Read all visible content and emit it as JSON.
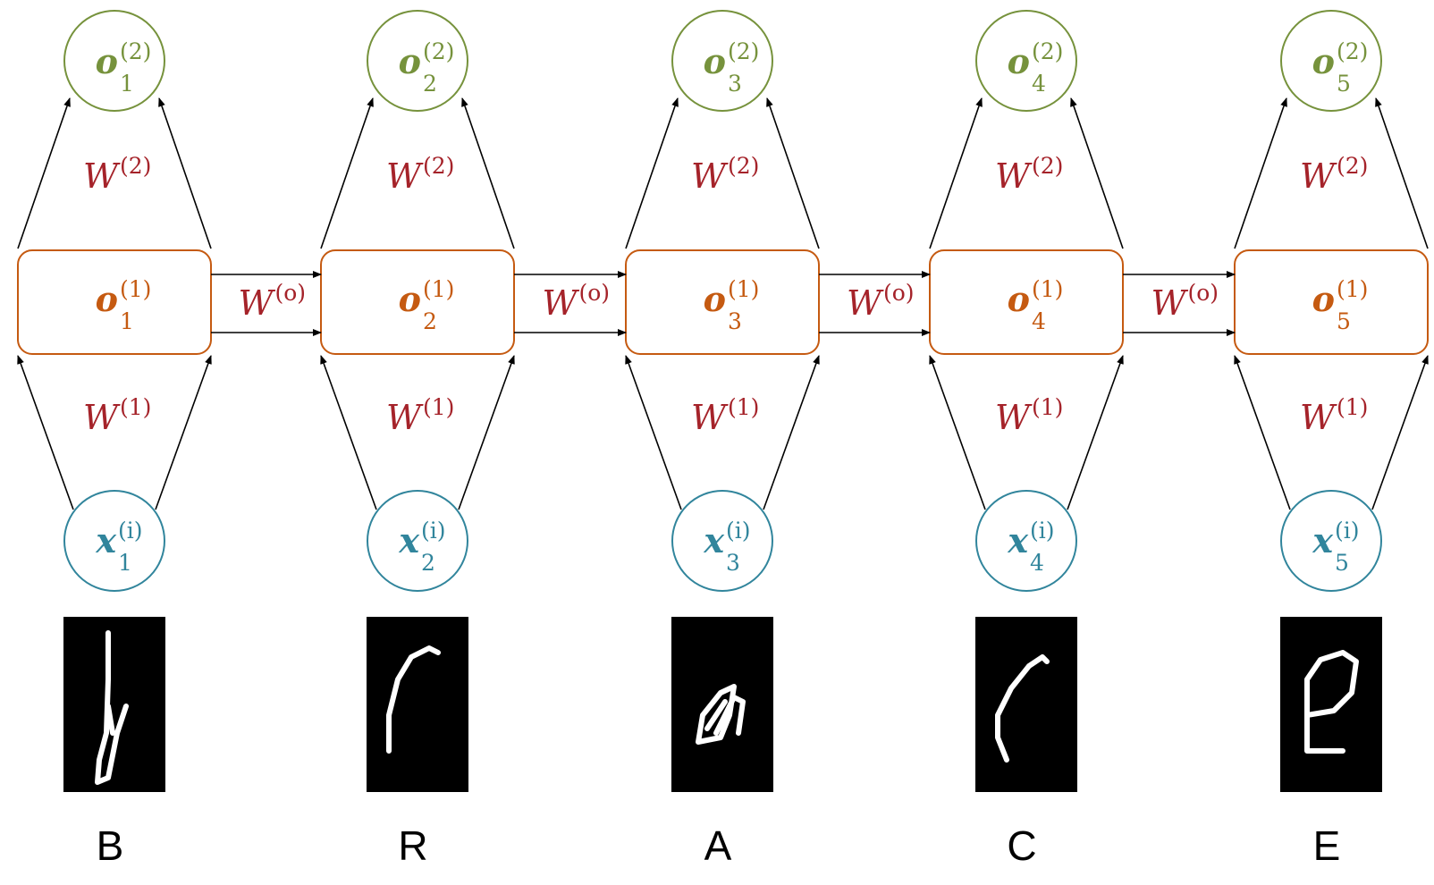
{
  "columns": [
    {
      "output": {
        "symbol": "o",
        "subscript": "1",
        "superscript": "(2)"
      },
      "up_weight": {
        "symbol": "W",
        "superscript": "(2)"
      },
      "hidden": {
        "symbol": "o",
        "subscript": "1",
        "superscript": "(1)"
      },
      "in_weight": {
        "symbol": "W",
        "superscript": "(1)"
      },
      "input": {
        "symbol": "x",
        "subscript": "1",
        "superscript": "(i)"
      },
      "letter": "B"
    },
    {
      "output": {
        "symbol": "o",
        "subscript": "2",
        "superscript": "(2)"
      },
      "up_weight": {
        "symbol": "W",
        "superscript": "(2)"
      },
      "hidden": {
        "symbol": "o",
        "subscript": "2",
        "superscript": "(1)"
      },
      "in_weight": {
        "symbol": "W",
        "superscript": "(1)"
      },
      "input": {
        "symbol": "x",
        "subscript": "2",
        "superscript": "(i)"
      },
      "letter": "R"
    },
    {
      "output": {
        "symbol": "o",
        "subscript": "3",
        "superscript": "(2)"
      },
      "up_weight": {
        "symbol": "W",
        "superscript": "(2)"
      },
      "hidden": {
        "symbol": "o",
        "subscript": "3",
        "superscript": "(1)"
      },
      "in_weight": {
        "symbol": "W",
        "superscript": "(1)"
      },
      "input": {
        "symbol": "x",
        "subscript": "3",
        "superscript": "(i)"
      },
      "letter": "A"
    },
    {
      "output": {
        "symbol": "o",
        "subscript": "4",
        "superscript": "(2)"
      },
      "up_weight": {
        "symbol": "W",
        "superscript": "(2)"
      },
      "hidden": {
        "symbol": "o",
        "subscript": "4",
        "superscript": "(1)"
      },
      "in_weight": {
        "symbol": "W",
        "superscript": "(1)"
      },
      "input": {
        "symbol": "x",
        "subscript": "4",
        "superscript": "(i)"
      },
      "letter": "C"
    },
    {
      "output": {
        "symbol": "o",
        "subscript": "5",
        "superscript": "(2)"
      },
      "up_weight": {
        "symbol": "W",
        "superscript": "(2)"
      },
      "hidden": {
        "symbol": "o",
        "subscript": "5",
        "superscript": "(1)"
      },
      "in_weight": {
        "symbol": "W",
        "superscript": "(1)"
      },
      "input": {
        "symbol": "x",
        "subscript": "5",
        "superscript": "(i)"
      },
      "letter": "E"
    }
  ],
  "recurrent_weights": [
    {
      "symbol": "W",
      "superscript": "(o)"
    },
    {
      "symbol": "W",
      "superscript": "(o)"
    },
    {
      "symbol": "W",
      "superscript": "(o)"
    },
    {
      "symbol": "W",
      "superscript": "(o)"
    }
  ]
}
